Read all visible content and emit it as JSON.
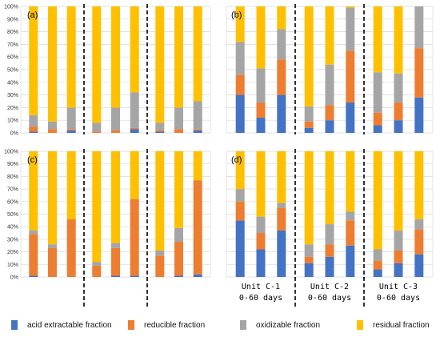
{
  "colors": {
    "acid": "#4472C4",
    "reducible": "#ED7D31",
    "oxidizable": "#A5A5A5",
    "residual": "#FFC000"
  },
  "legend": [
    {
      "key": "acid",
      "label": "acid extractable fraction"
    },
    {
      "key": "reducible",
      "label": "reducible fraction"
    },
    {
      "key": "oxidizable",
      "label": "oxidizable fraction"
    },
    {
      "key": "residual",
      "label": "residual fraction"
    }
  ],
  "y_tick_labels": [
    "0%",
    "10%",
    "20%",
    "30%",
    "40%",
    "50%",
    "60%",
    "70%",
    "80%",
    "90%",
    "100%"
  ],
  "unit_labels": [
    {
      "unit": "Unit C-1",
      "days": "0-60 days"
    },
    {
      "unit": "Unit C-2",
      "days": "0-60 days"
    },
    {
      "unit": "Unit C-3",
      "days": "0-60 days"
    }
  ],
  "chart_data": [
    {
      "panel": "(a)",
      "type": "bar",
      "stacked": true,
      "ylim": [
        0,
        100
      ],
      "groups": [
        "Unit C-1",
        "Unit C-2",
        "Unit C-3"
      ],
      "bars": [
        {
          "acid": 1,
          "reducible": 4,
          "oxidizable": 9,
          "residual": 86
        },
        {
          "acid": 0,
          "reducible": 3,
          "oxidizable": 6,
          "residual": 91
        },
        {
          "acid": 2,
          "reducible": 1,
          "oxidizable": 17,
          "residual": 80
        },
        {
          "acid": 0,
          "reducible": 1,
          "oxidizable": 7,
          "residual": 92
        },
        {
          "acid": 0,
          "reducible": 2,
          "oxidizable": 18,
          "residual": 80
        },
        {
          "acid": 3,
          "reducible": 1,
          "oxidizable": 28,
          "residual": 68
        },
        {
          "acid": 1,
          "reducible": 1,
          "oxidizable": 6,
          "residual": 92
        },
        {
          "acid": 0,
          "reducible": 3,
          "oxidizable": 17,
          "residual": 80
        },
        {
          "acid": 2,
          "reducible": 1,
          "oxidizable": 22,
          "residual": 75
        }
      ]
    },
    {
      "panel": "(b)",
      "type": "bar",
      "stacked": true,
      "ylim": [
        0,
        100
      ],
      "groups": [
        "Unit C-1",
        "Unit C-2",
        "Unit C-3"
      ],
      "bars": [
        {
          "acid": 30,
          "reducible": 16,
          "oxidizable": 26,
          "residual": 28
        },
        {
          "acid": 12,
          "reducible": 12,
          "oxidizable": 27,
          "residual": 49
        },
        {
          "acid": 30,
          "reducible": 28,
          "oxidizable": 24,
          "residual": 18
        },
        {
          "acid": 4,
          "reducible": 5,
          "oxidizable": 12,
          "residual": 79
        },
        {
          "acid": 10,
          "reducible": 12,
          "oxidizable": 32,
          "residual": 46
        },
        {
          "acid": 24,
          "reducible": 41,
          "oxidizable": 34,
          "residual": 1
        },
        {
          "acid": 6,
          "reducible": 10,
          "oxidizable": 32,
          "residual": 52
        },
        {
          "acid": 10,
          "reducible": 14,
          "oxidizable": 23,
          "residual": 53
        },
        {
          "acid": 28,
          "reducible": 39,
          "oxidizable": 33,
          "residual": 0
        }
      ]
    },
    {
      "panel": "(c)",
      "type": "bar",
      "stacked": true,
      "ylim": [
        0,
        100
      ],
      "groups": [
        "Unit C-1",
        "Unit C-2",
        "Unit C-3"
      ],
      "bars": [
        {
          "acid": 1,
          "reducible": 33,
          "oxidizable": 3,
          "residual": 63
        },
        {
          "acid": 0,
          "reducible": 23,
          "oxidizable": 3,
          "residual": 74
        },
        {
          "acid": 0,
          "reducible": 46,
          "oxidizable": 0,
          "residual": 54
        },
        {
          "acid": 0,
          "reducible": 9,
          "oxidizable": 3,
          "residual": 88
        },
        {
          "acid": 1,
          "reducible": 22,
          "oxidizable": 4,
          "residual": 73
        },
        {
          "acid": 1,
          "reducible": 61,
          "oxidizable": 0,
          "residual": 38
        },
        {
          "acid": 0,
          "reducible": 17,
          "oxidizable": 4,
          "residual": 79
        },
        {
          "acid": 1,
          "reducible": 27,
          "oxidizable": 11,
          "residual": 61
        },
        {
          "acid": 2,
          "reducible": 75,
          "oxidizable": 0,
          "residual": 23
        }
      ]
    },
    {
      "panel": "(d)",
      "type": "bar",
      "stacked": true,
      "ylim": [
        0,
        100
      ],
      "groups": [
        "Unit C-1",
        "Unit C-2",
        "Unit C-3"
      ],
      "bars": [
        {
          "acid": 45,
          "reducible": 15,
          "oxidizable": 10,
          "residual": 30
        },
        {
          "acid": 22,
          "reducible": 13,
          "oxidizable": 13,
          "residual": 52
        },
        {
          "acid": 37,
          "reducible": 18,
          "oxidizable": 4,
          "residual": 41
        },
        {
          "acid": 11,
          "reducible": 5,
          "oxidizable": 10,
          "residual": 74
        },
        {
          "acid": 16,
          "reducible": 10,
          "oxidizable": 16,
          "residual": 58
        },
        {
          "acid": 25,
          "reducible": 20,
          "oxidizable": 7,
          "residual": 48
        },
        {
          "acid": 6,
          "reducible": 7,
          "oxidizable": 9,
          "residual": 78
        },
        {
          "acid": 11,
          "reducible": 10,
          "oxidizable": 16,
          "residual": 63
        },
        {
          "acid": 18,
          "reducible": 20,
          "oxidizable": 8,
          "residual": 54
        }
      ]
    }
  ]
}
